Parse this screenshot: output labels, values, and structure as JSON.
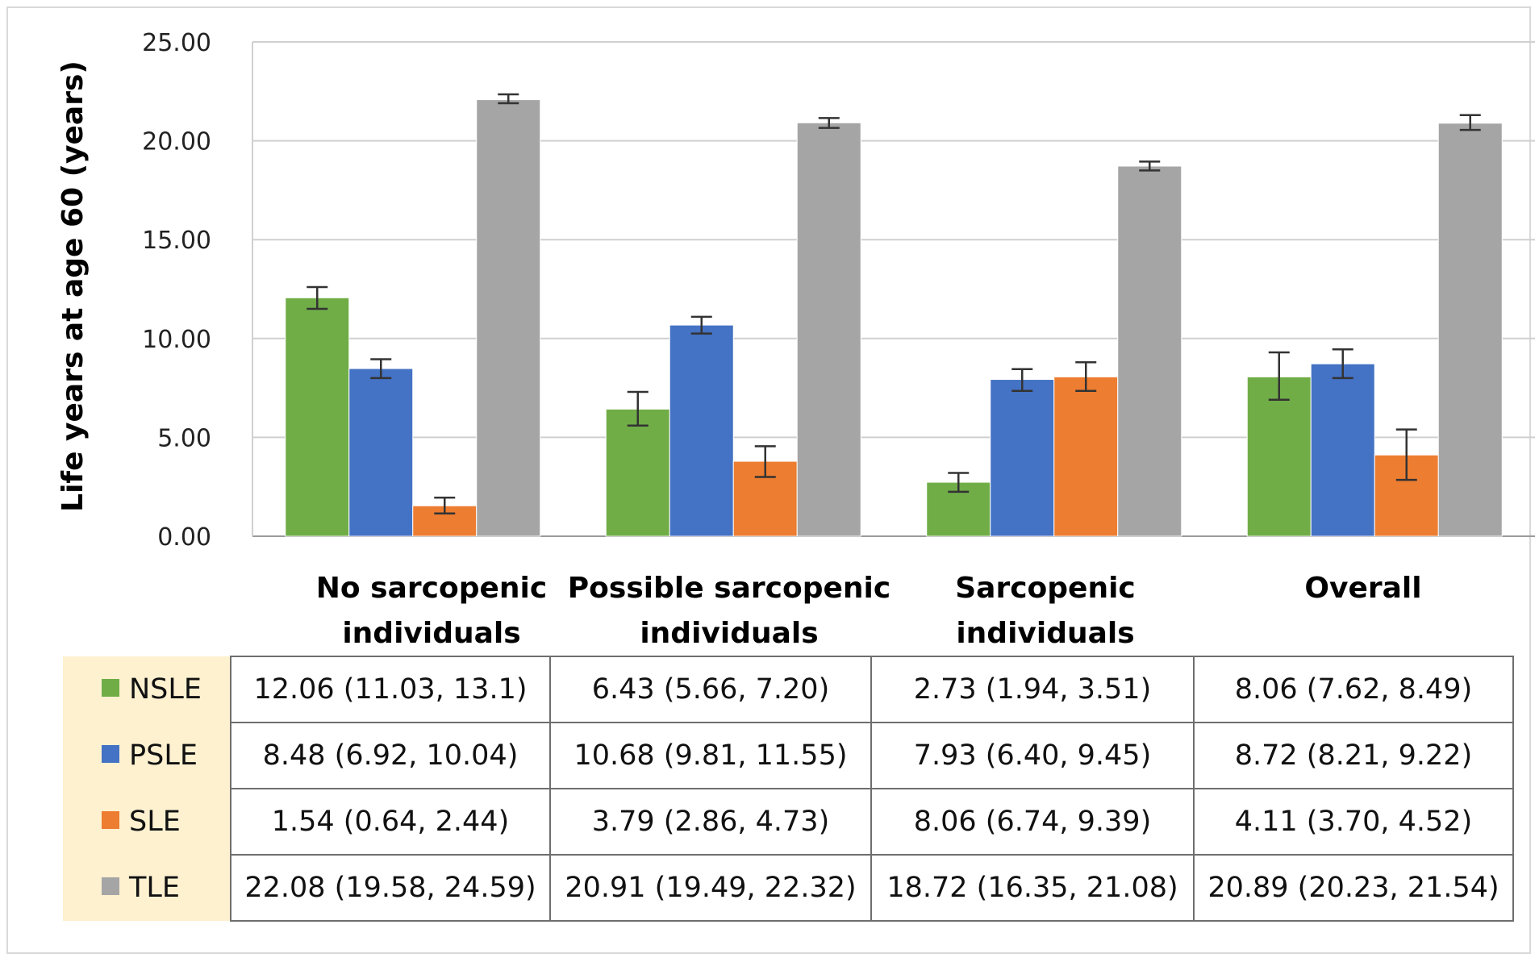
{
  "chart_data": {
    "type": "bar",
    "ylabel": "Life years at age 60 (years)",
    "ylim": [
      0,
      25
    ],
    "yticks": [
      "0.00",
      "5.00",
      "10.00",
      "15.00",
      "20.00",
      "25.00"
    ],
    "ytick_values": [
      0,
      5,
      10,
      15,
      20,
      25
    ],
    "grid": true,
    "categories": [
      [
        "No sarcopenic",
        "individuals"
      ],
      [
        "Possible sarcopenic",
        "individuals"
      ],
      [
        "Sarcopenic",
        "individuals"
      ],
      [
        "Overall"
      ]
    ],
    "series": [
      {
        "name": "NSLE",
        "color": "#70ad47",
        "values": [
          12.06,
          6.43,
          2.73,
          8.06
        ],
        "labels": [
          "12.06 (11.03, 13.1)",
          "6.43 (5.66, 7.20)",
          "2.73 (1.94, 3.51)",
          "8.06 (7.62, 8.49)"
        ],
        "err_low": [
          11.5,
          5.6,
          2.25,
          6.9
        ],
        "err_high": [
          12.6,
          7.3,
          3.2,
          9.3
        ]
      },
      {
        "name": "PSLE",
        "color": "#4472c4",
        "values": [
          8.48,
          10.68,
          7.93,
          8.72
        ],
        "labels": [
          "8.48 (6.92, 10.04)",
          "10.68 (9.81, 11.55)",
          "7.93 (6.40, 9.45)",
          "8.72 (8.21, 9.22)"
        ],
        "err_low": [
          8.0,
          10.25,
          7.35,
          8.0
        ],
        "err_high": [
          8.95,
          11.1,
          8.45,
          9.45
        ]
      },
      {
        "name": "SLE",
        "color": "#ed7d31",
        "values": [
          1.54,
          3.79,
          8.06,
          4.11
        ],
        "labels": [
          "1.54 (0.64, 2.44)",
          "3.79 (2.86, 4.73)",
          "8.06 (6.74, 9.39)",
          "4.11 (3.70, 4.52)"
        ],
        "err_low": [
          1.15,
          3.0,
          7.35,
          2.85
        ],
        "err_high": [
          1.95,
          4.55,
          8.8,
          5.4
        ]
      },
      {
        "name": "TLE",
        "color": "#a5a5a5",
        "values": [
          22.08,
          20.91,
          18.72,
          20.89
        ],
        "labels": [
          "22.08 (19.58, 24.59)",
          "20.91 (19.49, 22.32)",
          "18.72 (16.35, 21.08)",
          "20.89 (20.23, 21.54)"
        ],
        "err_low": [
          21.9,
          20.65,
          18.5,
          20.55
        ],
        "err_high": [
          22.35,
          21.15,
          18.95,
          21.3
        ]
      }
    ]
  }
}
